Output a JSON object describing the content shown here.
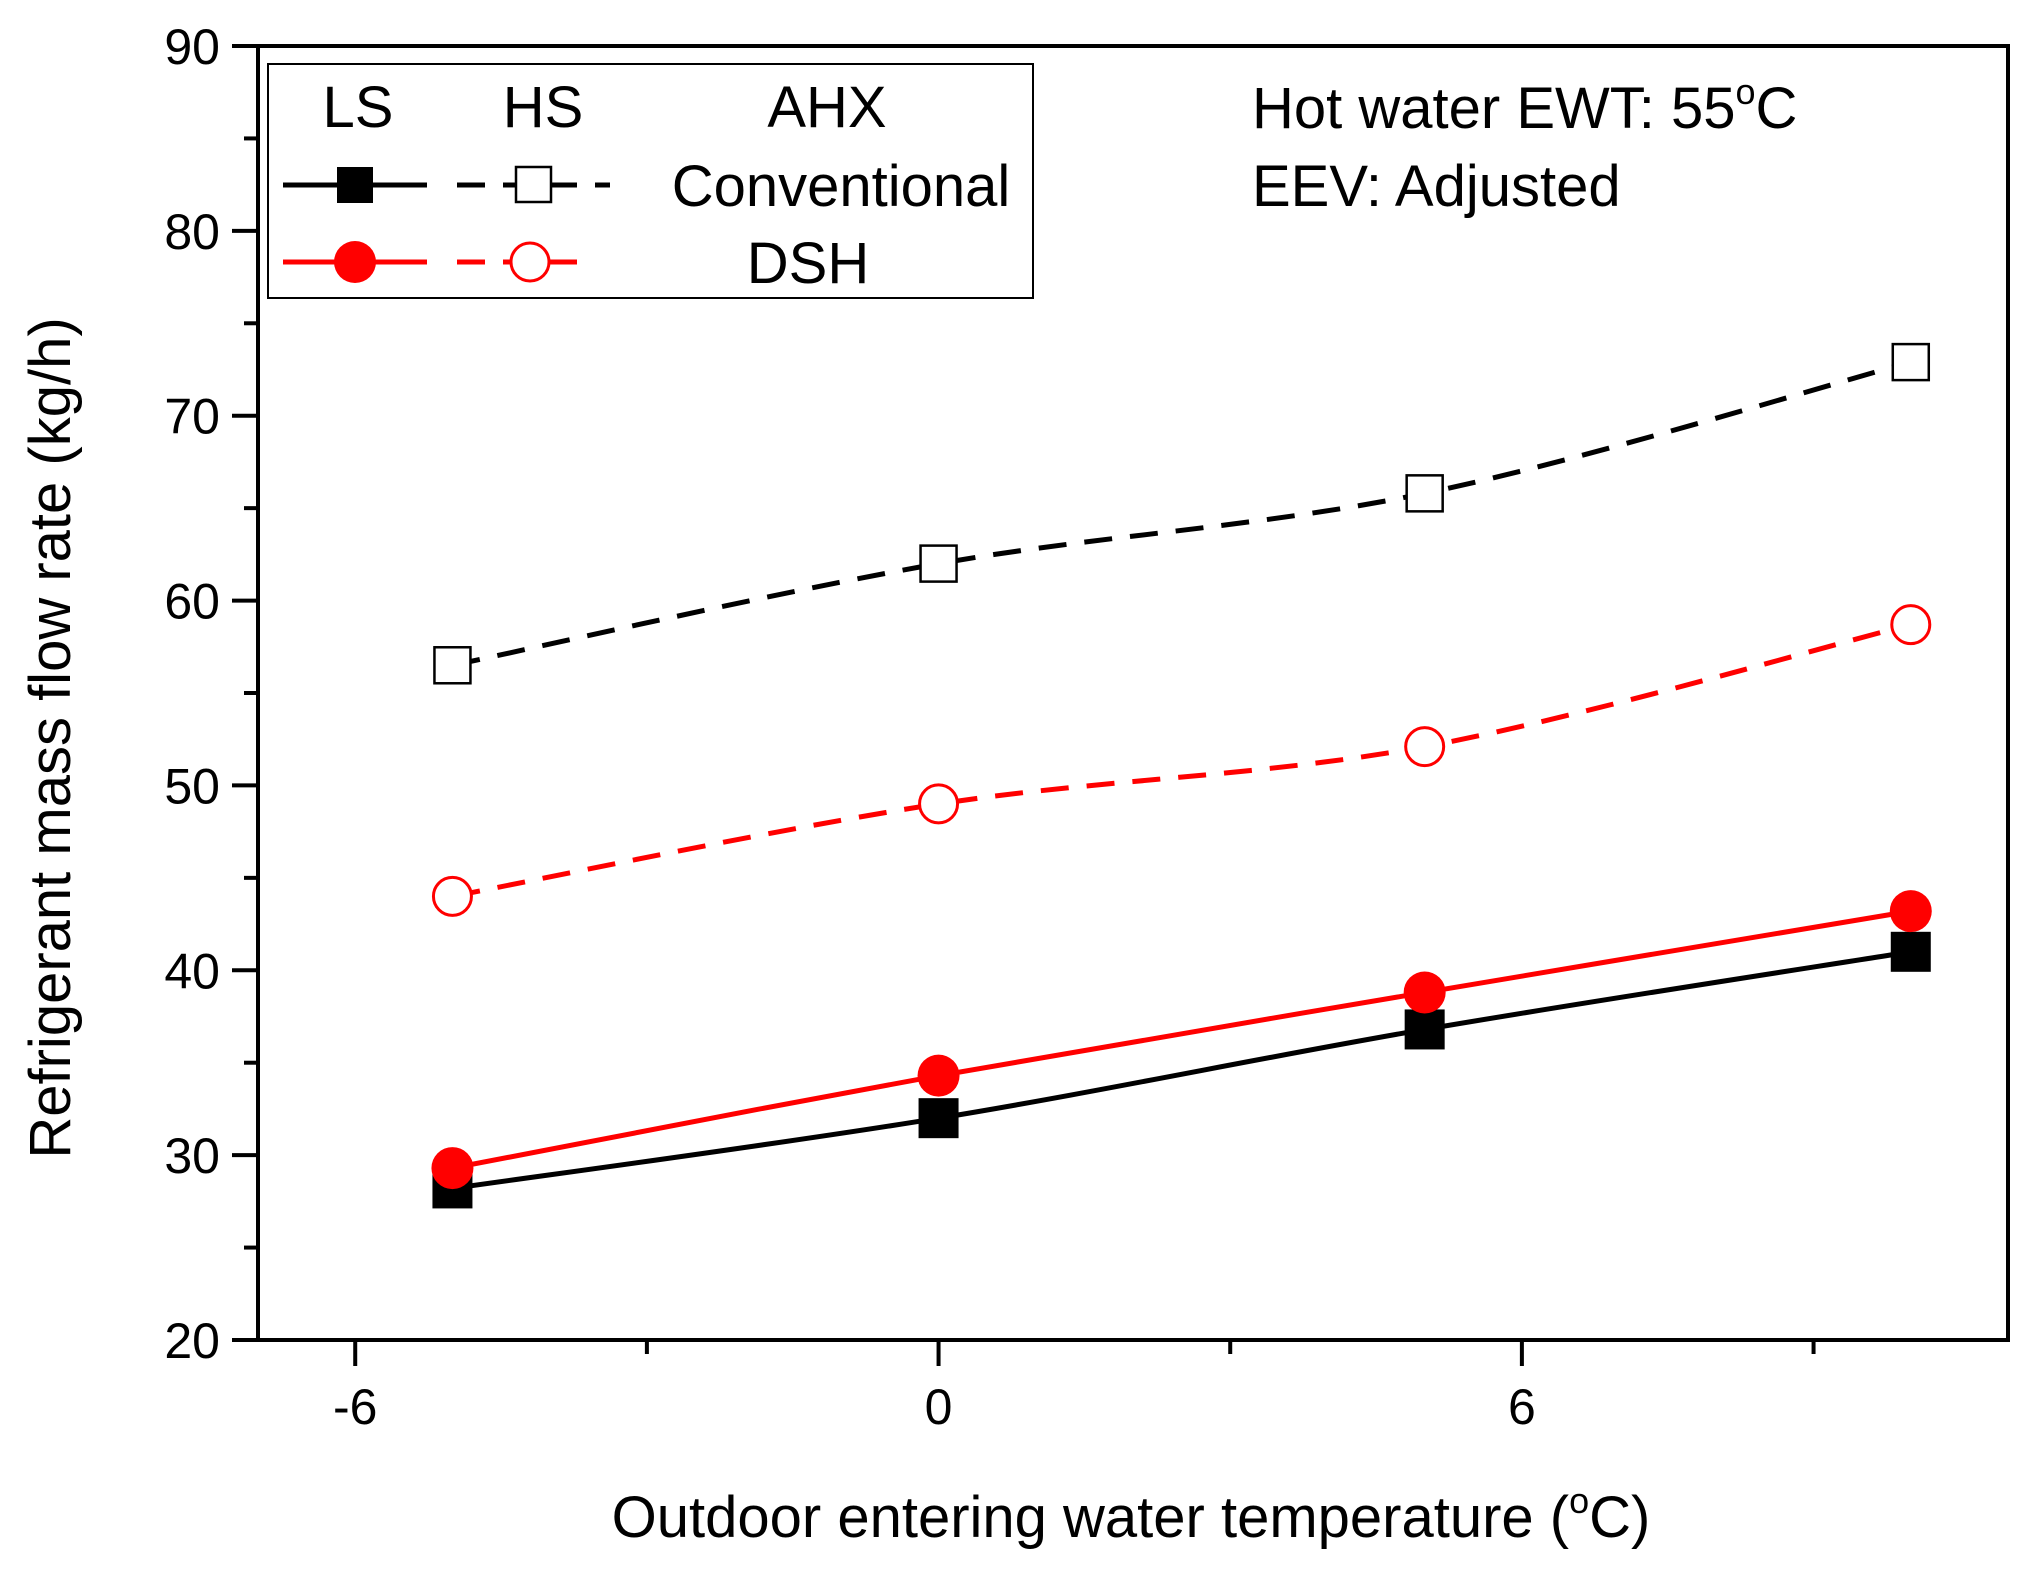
{
  "chart_data": {
    "type": "line",
    "xlabel": "Outdoor entering water temperature (",
    "xlabel_unit_sup": "o",
    "xlabel_unit_end": "C)",
    "ylabel": "Refrigerant mass flow rate (kg/h)",
    "xlim": [
      -7,
      11
    ],
    "ylim": [
      20,
      90
    ],
    "x_ticks": [
      -6,
      0,
      6
    ],
    "x_tick_labels": [
      "-6",
      "0",
      "6"
    ],
    "y_ticks": [
      20,
      30,
      40,
      50,
      60,
      70,
      80,
      90
    ],
    "y_tick_labels": [
      "20",
      "30",
      "40",
      "50",
      "60",
      "70",
      "80",
      "90"
    ],
    "x": [
      -5,
      0,
      5,
      10
    ],
    "series": [
      {
        "name": "Conventional LS",
        "ahx": "Conventional",
        "mode": "LS",
        "color": "#000000",
        "marker": "square-filled",
        "dash": "solid",
        "values": [
          28.2,
          32.0,
          36.8,
          41.0
        ]
      },
      {
        "name": "Conventional HS",
        "ahx": "Conventional",
        "mode": "HS",
        "color": "#000000",
        "marker": "square-open",
        "dash": "dashed",
        "values": [
          56.5,
          62.0,
          65.8,
          72.9
        ]
      },
      {
        "name": "DSH LS",
        "ahx": "DSH",
        "mode": "LS",
        "color": "#ff0000",
        "marker": "circle-filled",
        "dash": "solid",
        "values": [
          29.3,
          34.3,
          38.8,
          43.2
        ]
      },
      {
        "name": "DSH HS",
        "ahx": "DSH",
        "mode": "HS",
        "color": "#ff0000",
        "marker": "circle-open",
        "dash": "dashed",
        "values": [
          44.0,
          49.0,
          52.1,
          58.7
        ]
      }
    ],
    "legend": {
      "placement": "top-left",
      "header_ls": "LS",
      "header_hs": "HS",
      "header_ahx": "AHX",
      "row1_label": "Conventional",
      "row2_label": "DSH"
    },
    "annotations": {
      "line1_prefix": "Hot water EWT: 55",
      "line1_sup": "o",
      "line1_suffix": "C",
      "line2": "EEV: Adjusted"
    }
  }
}
